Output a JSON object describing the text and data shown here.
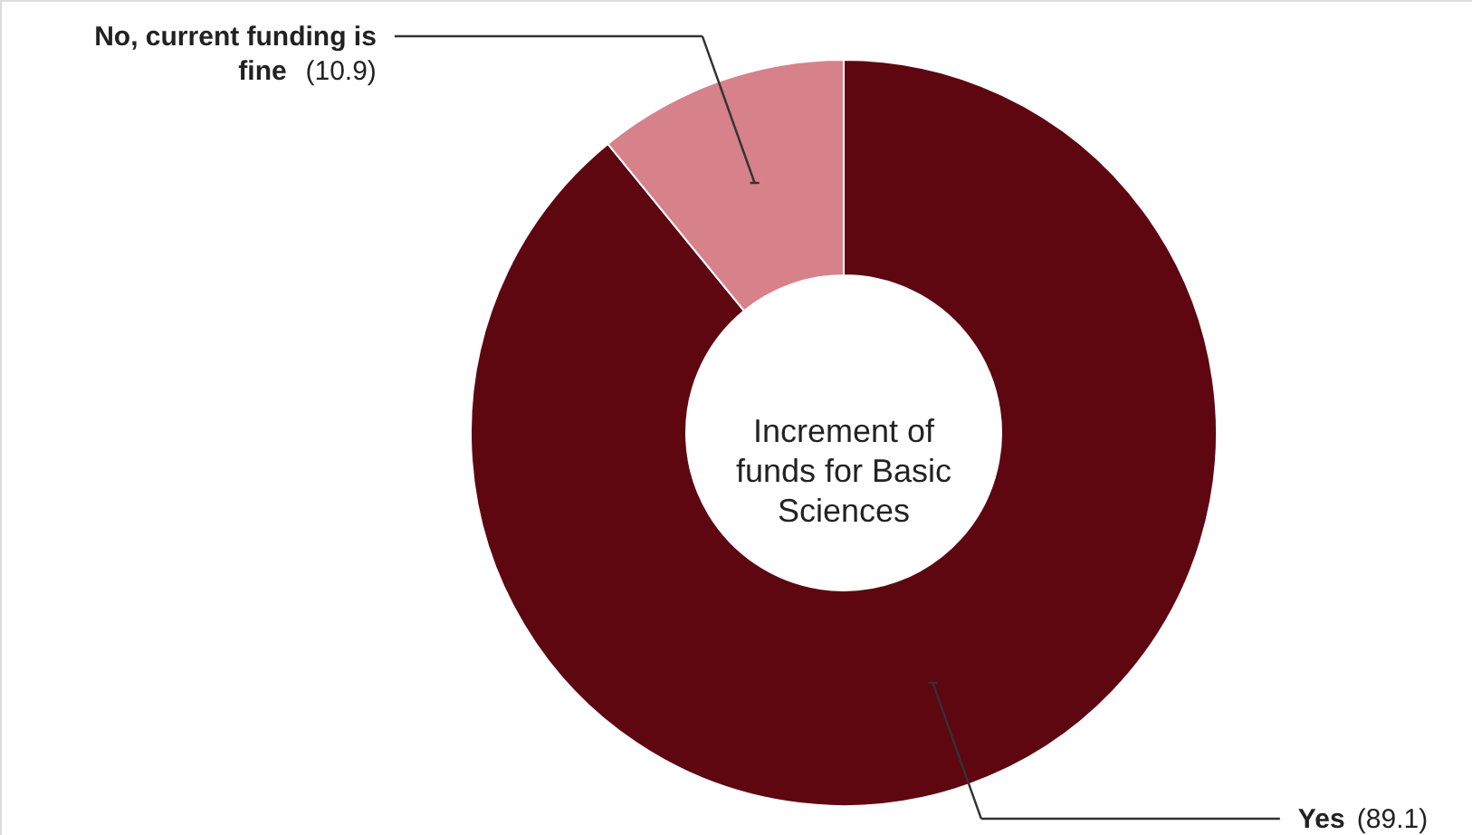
{
  "chart_data": {
    "type": "donut",
    "title": "Increment of funds for Basic Sciences",
    "categories": [
      "No, current funding is fine",
      "Yes"
    ],
    "values": [
      10.9,
      89.1
    ],
    "colors": [
      "#d7818b",
      "#5e0711"
    ],
    "value_labels": [
      "(10.9)",
      "(89.1)"
    ]
  }
}
